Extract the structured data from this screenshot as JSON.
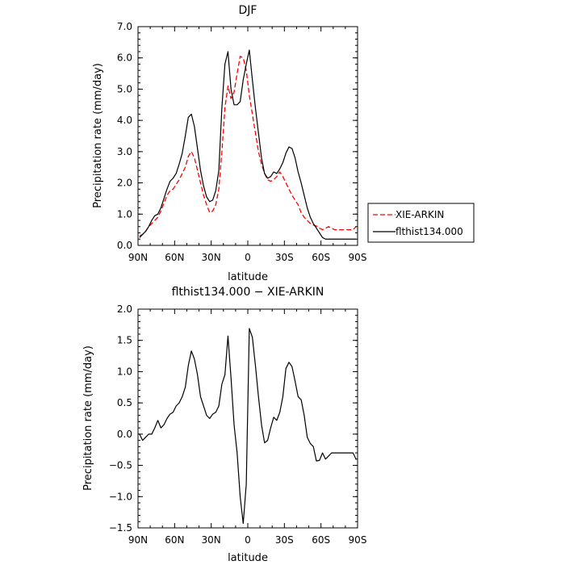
{
  "chart_data": [
    {
      "type": "line",
      "title": "DJF",
      "xlabel": "latitude",
      "ylabel": "Precipitation rate (mm/day)",
      "xlim": [
        90,
        -90
      ],
      "ylim": [
        0,
        7
      ],
      "x_ticks": [
        90,
        60,
        30,
        0,
        -30,
        -60,
        -90
      ],
      "x_tick_labels": [
        "90N",
        "60N",
        "30N",
        "0",
        "30S",
        "60S",
        "90S"
      ],
      "y_ticks": [
        0,
        1,
        2,
        3,
        4,
        5,
        6,
        7
      ],
      "y_tick_labels": [
        "0.0",
        "1.0",
        "2.0",
        "3.0",
        "4.0",
        "5.0",
        "6.0",
        "7.0"
      ],
      "grid": false,
      "legend": "right",
      "series": [
        {
          "name": "XIE-ARKIN",
          "color": "#ff0000",
          "dash": "dashed",
          "x": [
            88.75,
            86.25,
            83.75,
            81.25,
            78.75,
            76.25,
            73.75,
            71.25,
            68.75,
            66.25,
            63.75,
            61.25,
            58.75,
            56.25,
            53.75,
            51.25,
            48.75,
            46.25,
            43.75,
            41.25,
            38.75,
            36.25,
            33.75,
            31.25,
            28.75,
            26.25,
            23.75,
            21.25,
            18.75,
            16.25,
            13.75,
            11.25,
            8.75,
            6.25,
            3.75,
            1.25,
            -1.25,
            -3.75,
            -6.25,
            -8.75,
            -11.25,
            -13.75,
            -16.25,
            -18.75,
            -21.25,
            -23.75,
            -26.25,
            -28.75,
            -31.25,
            -33.75,
            -36.25,
            -38.75,
            -41.25,
            -43.75,
            -46.25,
            -48.75,
            -51.25,
            -53.75,
            -56.25,
            -58.75,
            -61.25,
            -63.75,
            -66.25,
            -68.75,
            -71.25,
            -73.75,
            -76.25,
            -78.75,
            -81.25,
            -83.75,
            -86.25,
            -88.75
          ],
          "y": [
            0.3,
            0.35,
            0.45,
            0.6,
            0.7,
            0.8,
            0.9,
            1.1,
            1.35,
            1.6,
            1.75,
            1.8,
            1.95,
            2.1,
            2.3,
            2.5,
            2.85,
            3.0,
            2.8,
            2.4,
            2.0,
            1.6,
            1.3,
            1.05,
            1.1,
            1.3,
            1.8,
            3.0,
            4.4,
            5.1,
            4.7,
            4.9,
            5.5,
            6.05,
            6.0,
            5.6,
            4.8,
            4.2,
            3.6,
            3.0,
            2.6,
            2.3,
            2.1,
            2.05,
            2.1,
            2.2,
            2.35,
            2.2,
            2.0,
            1.8,
            1.6,
            1.45,
            1.3,
            1.05,
            0.9,
            0.8,
            0.7,
            0.65,
            0.62,
            0.55,
            0.5,
            0.55,
            0.6,
            0.55,
            0.5,
            0.5,
            0.5,
            0.5,
            0.5,
            0.5,
            0.5,
            0.6
          ]
        },
        {
          "name": "flthist134.000",
          "color": "#000000",
          "dash": "solid",
          "x": [
            88.75,
            86.25,
            83.75,
            81.25,
            78.75,
            76.25,
            73.75,
            71.25,
            68.75,
            66.25,
            63.75,
            61.25,
            58.75,
            56.25,
            53.75,
            51.25,
            48.75,
            46.25,
            43.75,
            41.25,
            38.75,
            36.25,
            33.75,
            31.25,
            28.75,
            26.25,
            23.75,
            21.25,
            18.75,
            16.25,
            13.75,
            11.25,
            8.75,
            6.25,
            3.75,
            1.25,
            -1.25,
            -3.75,
            -6.25,
            -8.75,
            -11.25,
            -13.75,
            -16.25,
            -18.75,
            -21.25,
            -23.75,
            -26.25,
            -28.75,
            -31.25,
            -33.75,
            -36.25,
            -38.75,
            -41.25,
            -43.75,
            -46.25,
            -48.75,
            -51.25,
            -53.75,
            -56.25,
            -58.75,
            -61.25,
            -63.75,
            -66.25,
            -68.75,
            -71.25,
            -73.75,
            -76.25,
            -78.75,
            -81.25,
            -83.75,
            -86.25,
            -88.75
          ],
          "y": [
            0.25,
            0.35,
            0.45,
            0.6,
            0.8,
            0.95,
            1.0,
            1.2,
            1.5,
            1.8,
            2.05,
            2.15,
            2.3,
            2.6,
            2.95,
            3.5,
            4.1,
            4.2,
            3.8,
            3.1,
            2.4,
            1.9,
            1.55,
            1.4,
            1.45,
            1.75,
            2.4,
            4.4,
            5.8,
            6.2,
            5.0,
            4.5,
            4.5,
            4.6,
            5.3,
            5.8,
            6.25,
            5.3,
            4.4,
            3.6,
            2.8,
            2.3,
            2.15,
            2.2,
            2.35,
            2.3,
            2.45,
            2.65,
            2.95,
            3.15,
            3.1,
            2.8,
            2.35,
            2.0,
            1.6,
            1.2,
            0.9,
            0.7,
            0.55,
            0.4,
            0.25,
            0.2,
            0.2,
            0.2,
            0.2,
            0.2,
            0.2,
            0.2,
            0.2,
            0.2,
            0.2,
            0.2
          ]
        }
      ]
    },
    {
      "type": "line",
      "title": "flthist134.000 − XIE-ARKIN",
      "xlabel": "latitude",
      "ylabel": "Precipitation rate (mm/day)",
      "xlim": [
        90,
        -90
      ],
      "ylim": [
        -1.5,
        2
      ],
      "x_ticks": [
        90,
        60,
        30,
        0,
        -30,
        -60,
        -90
      ],
      "x_tick_labels": [
        "90N",
        "60N",
        "30N",
        "0",
        "30S",
        "60S",
        "90S"
      ],
      "y_ticks": [
        -1.5,
        -1,
        -0.5,
        0,
        0.5,
        1,
        1.5,
        2
      ],
      "y_tick_labels": [
        "−1.5",
        "−1.0",
        "−0.5",
        "0.0",
        "0.5",
        "1.0",
        "1.5",
        "2.0"
      ],
      "grid": false,
      "series": [
        {
          "color": "#000000",
          "dash": "solid",
          "x": [
            88.75,
            86.25,
            83.75,
            81.25,
            78.75,
            76.25,
            73.75,
            71.25,
            68.75,
            66.25,
            63.75,
            61.25,
            58.75,
            56.25,
            53.75,
            51.25,
            48.75,
            46.25,
            43.75,
            41.25,
            38.75,
            36.25,
            33.75,
            31.25,
            28.75,
            26.25,
            23.75,
            21.25,
            18.75,
            16.25,
            13.75,
            11.25,
            8.75,
            6.25,
            3.75,
            1.25,
            -1.25,
            -3.75,
            -6.25,
            -8.75,
            -11.25,
            -13.75,
            -16.25,
            -18.75,
            -21.25,
            -23.75,
            -26.25,
            -28.75,
            -31.25,
            -33.75,
            -36.25,
            -38.75,
            -41.25,
            -43.75,
            -46.25,
            -48.75,
            -51.25,
            -53.75,
            -56.25,
            -58.75,
            -61.25,
            -63.75,
            -66.25,
            -68.75,
            -71.25,
            -73.75,
            -76.25,
            -78.75,
            -81.25,
            -83.75,
            -86.25,
            -88.75
          ],
          "y": [
            0.0,
            -0.1,
            -0.05,
            0.0,
            0.0,
            0.1,
            0.22,
            0.1,
            0.15,
            0.25,
            0.32,
            0.35,
            0.45,
            0.5,
            0.6,
            0.75,
            1.1,
            1.33,
            1.2,
            0.95,
            0.6,
            0.45,
            0.3,
            0.25,
            0.32,
            0.35,
            0.45,
            0.8,
            0.95,
            1.57,
            0.9,
            0.15,
            -0.3,
            -1.0,
            -1.43,
            -0.8,
            1.69,
            1.55,
            1.1,
            0.6,
            0.15,
            -0.14,
            -0.1,
            0.1,
            0.27,
            0.22,
            0.35,
            0.6,
            1.05,
            1.15,
            1.08,
            0.85,
            0.6,
            0.55,
            0.3,
            -0.05,
            -0.15,
            -0.2,
            -0.43,
            -0.42,
            -0.3,
            -0.4,
            -0.35,
            -0.3,
            -0.3,
            -0.3,
            -0.3,
            -0.3,
            -0.3,
            -0.3,
            -0.3,
            -0.4
          ]
        }
      ]
    }
  ]
}
